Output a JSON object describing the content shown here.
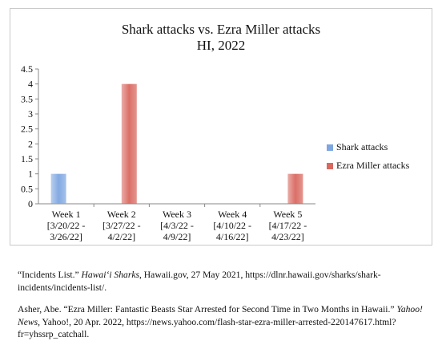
{
  "chart_data": {
    "type": "bar",
    "title": "Shark attacks vs. Ezra Miller attacks",
    "subtitle": "HI, 2022",
    "categories": [
      [
        "Week 1",
        "[3/20/22 -",
        "3/26/22]"
      ],
      [
        "Week 2",
        "[3/27/22 -",
        "4/2/22]"
      ],
      [
        "Week 3",
        "[4/3/22 -",
        "4/9/22]"
      ],
      [
        "Week 4",
        "[4/10/22 -",
        "4/16/22]"
      ],
      [
        "Week 5",
        "[4/17/22 -",
        "4/23/22]"
      ]
    ],
    "series": [
      {
        "name": "Shark attacks",
        "values": [
          1,
          0,
          0,
          0,
          0
        ],
        "color": "#7ea6e0"
      },
      {
        "name": "Ezra Miller attacks",
        "values": [
          0,
          4,
          0,
          0,
          1
        ],
        "color": "#d9685f"
      }
    ],
    "ylim": [
      0,
      4.5
    ],
    "yticks": [
      "0",
      "0.5",
      "1",
      "1.5",
      "2",
      "2.5",
      "3",
      "3.5",
      "4",
      "4.5"
    ],
    "grid": false,
    "legend_position": "right"
  },
  "citations": [
    {
      "pre": "“Incidents List.” ",
      "italic": "Hawai‘i Sharks",
      "post": ", Hawaii.gov, 27 May 2021, https://dlnr.hawaii.gov/sharks/shark-incidents/incidents-list/."
    },
    {
      "pre": "Asher, Abe. “Ezra Miller: Fantastic Beasts Star Arrested for Second Time in Two Months in Hawaii.” ",
      "italic": "Yahoo! News",
      "post": ", Yahoo!, 20 Apr. 2022, https://news.yahoo.com/flash-star-ezra-miller-arrested-220147617.html?fr=yhssrp_catchall."
    }
  ]
}
